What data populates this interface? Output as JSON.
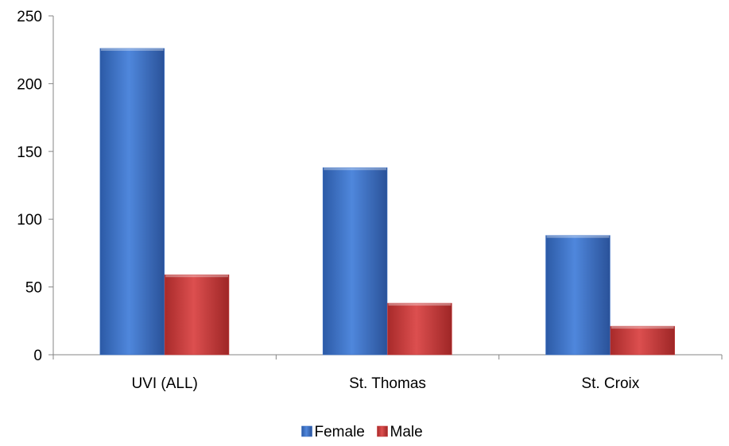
{
  "chart_data": {
    "type": "bar",
    "title": "",
    "xlabel": "",
    "ylabel": "",
    "categories": [
      "UVI (ALL)",
      "St. Thomas",
      "St. Croix"
    ],
    "series": [
      {
        "name": "Female",
        "values": [
          226,
          138,
          88
        ],
        "color": "#3a6fc4"
      },
      {
        "name": "Male",
        "values": [
          59,
          38,
          21
        ],
        "color": "#c43a3a"
      }
    ],
    "ylim": [
      0,
      250
    ],
    "yticks": [
      0,
      50,
      100,
      150,
      200,
      250
    ],
    "grid": false,
    "legend": "bottom-center"
  }
}
